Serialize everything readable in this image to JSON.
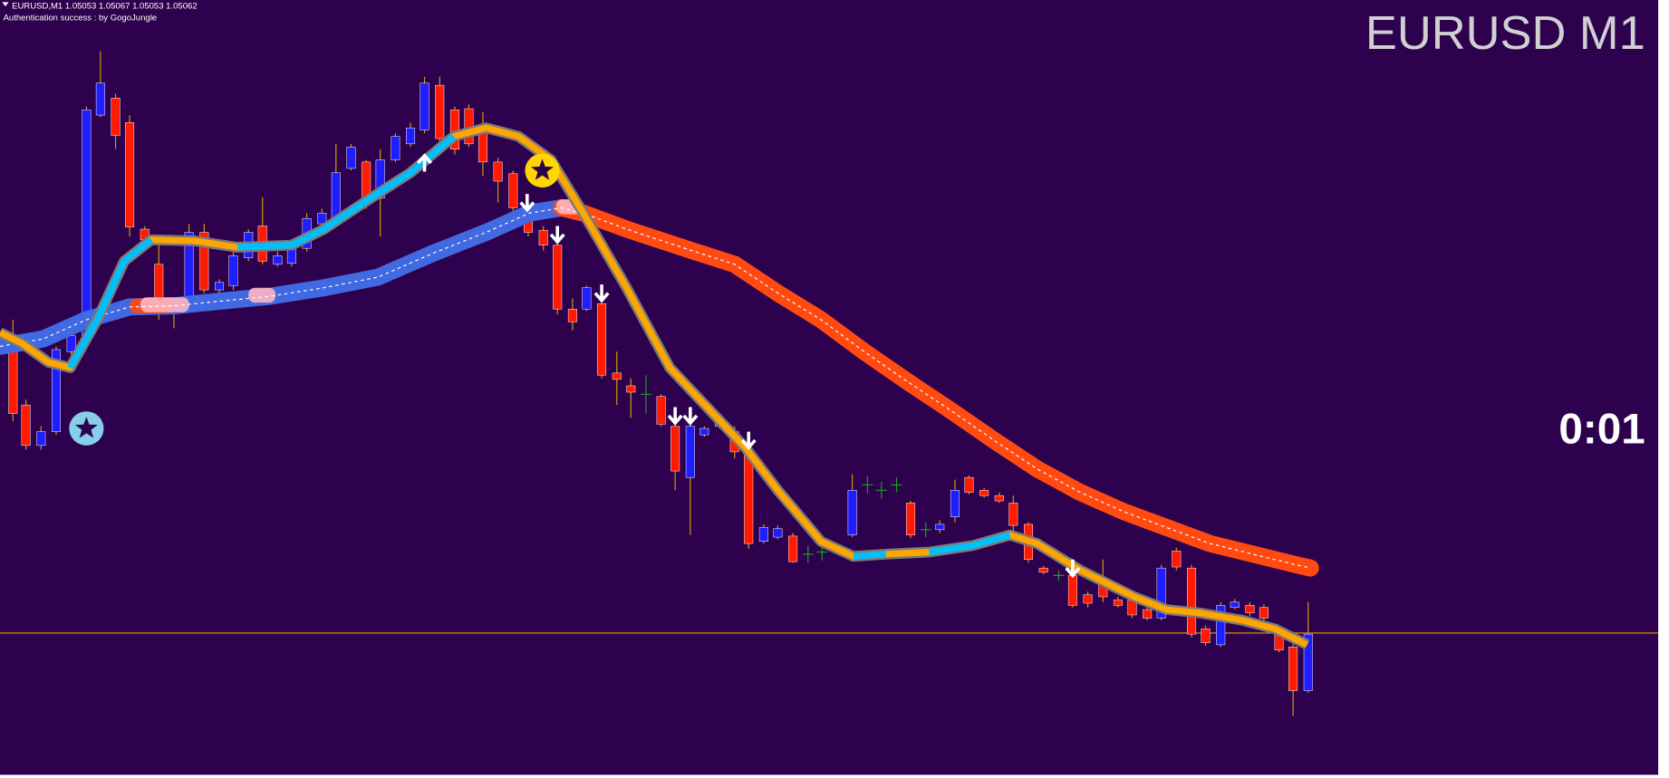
{
  "header": {
    "symbol_info": "EURUSD,M1  1.05053 1.05067 1.05053 1.05062",
    "auth": "Authentication success : by GogoJungle"
  },
  "title": "EURUSD M1",
  "timer": "0:01"
}
